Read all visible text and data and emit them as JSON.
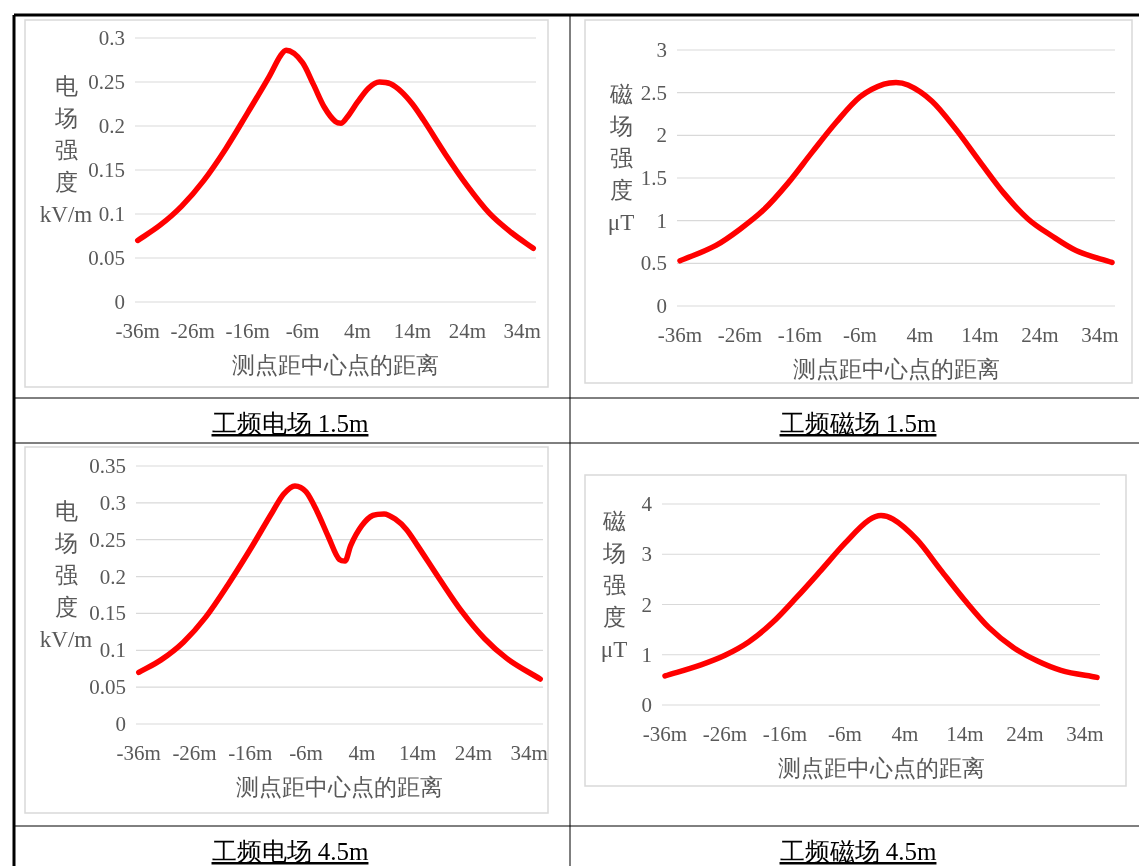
{
  "chart_data": [
    {
      "type": "line",
      "title": "工频电场 1.5m",
      "xlabel": "测点距中心点的距离",
      "ylabel": "电场强度kV/m",
      "grid": "y",
      "marker": "none",
      "line_style": "solid",
      "xlim": [
        -36.5,
        36.5
      ],
      "xticks": [
        {
          "value": -36,
          "label": "-36m"
        },
        {
          "value": -26,
          "label": "-26m"
        },
        {
          "value": -16,
          "label": "-16m"
        },
        {
          "value": -6,
          "label": "-6m"
        },
        {
          "value": 4,
          "label": "4m"
        },
        {
          "value": 14,
          "label": "14m"
        },
        {
          "value": 24,
          "label": "24m"
        },
        {
          "value": 34,
          "label": "34m"
        }
      ],
      "ylim": [
        0,
        0.3
      ],
      "yticks": [
        0,
        0.05,
        0.1,
        0.15,
        0.2,
        0.25,
        0.3
      ],
      "series": [
        {
          "color": "#ff0000",
          "x": [
            -36,
            -32,
            -28,
            -24,
            -20,
            -16,
            -12,
            -10,
            -9,
            -6,
            -4,
            -2,
            0,
            1,
            2,
            4,
            6,
            8,
            10,
            12,
            14,
            16,
            20,
            24,
            28,
            32,
            36
          ],
          "values": [
            0.07,
            0.087,
            0.109,
            0.138,
            0.174,
            0.215,
            0.257,
            0.28,
            0.286,
            0.272,
            0.247,
            0.221,
            0.205,
            0.203,
            0.209,
            0.227,
            0.243,
            0.25,
            0.248,
            0.239,
            0.225,
            0.207,
            0.168,
            0.132,
            0.101,
            0.079,
            0.061
          ]
        }
      ]
    },
    {
      "type": "line",
      "title": "工频磁场 1.5m",
      "xlabel": "测点距中心点的距离",
      "ylabel": "磁场强度μT",
      "grid": "y",
      "marker": "none",
      "line_style": "solid",
      "xlim": [
        -36.5,
        36.5
      ],
      "xticks": [
        {
          "value": -36,
          "label": "-36m"
        },
        {
          "value": -26,
          "label": "-26m"
        },
        {
          "value": -16,
          "label": "-16m"
        },
        {
          "value": -6,
          "label": "-6m"
        },
        {
          "value": 4,
          "label": "4m"
        },
        {
          "value": 14,
          "label": "14m"
        },
        {
          "value": 24,
          "label": "24m"
        },
        {
          "value": 34,
          "label": "34m"
        }
      ],
      "ylim": [
        0,
        3
      ],
      "yticks": [
        0,
        0.5,
        1,
        1.5,
        2,
        2.5,
        3
      ],
      "series": [
        {
          "color": "#ff0000",
          "x": [
            -36,
            -30,
            -26,
            -22,
            -18,
            -14,
            -10,
            -6,
            -2,
            0,
            2,
            6,
            10,
            14,
            18,
            22,
            26,
            30,
            36
          ],
          "values": [
            0.53,
            0.71,
            0.9,
            1.13,
            1.44,
            1.8,
            2.15,
            2.45,
            2.6,
            2.62,
            2.59,
            2.4,
            2.07,
            1.69,
            1.32,
            1.02,
            0.82,
            0.65,
            0.51
          ]
        }
      ]
    },
    {
      "type": "line",
      "title": "工频电场 4.5m",
      "xlabel": "测点距中心点的距离",
      "ylabel": "电场强度kV/m",
      "grid": "y",
      "marker": "none",
      "line_style": "solid",
      "xlim": [
        -36.5,
        36.5
      ],
      "xticks": [
        {
          "value": -36,
          "label": "-36m"
        },
        {
          "value": -26,
          "label": "-26m"
        },
        {
          "value": -16,
          "label": "-16m"
        },
        {
          "value": -6,
          "label": "-6m"
        },
        {
          "value": 4,
          "label": "4m"
        },
        {
          "value": 14,
          "label": "14m"
        },
        {
          "value": 24,
          "label": "24m"
        },
        {
          "value": 34,
          "label": "34m"
        }
      ],
      "ylim": [
        0,
        0.35
      ],
      "yticks": [
        0,
        0.05,
        0.1,
        0.15,
        0.2,
        0.25,
        0.3,
        0.35
      ],
      "series": [
        {
          "color": "#ff0000",
          "x": [
            -36,
            -32,
            -28,
            -24,
            -20,
            -16,
            -12,
            -10,
            -8,
            -6,
            -4,
            -2,
            0,
            1,
            2,
            4,
            6,
            8,
            10,
            12,
            14,
            18,
            22,
            26,
            30,
            36
          ],
          "values": [
            0.07,
            0.087,
            0.111,
            0.145,
            0.189,
            0.237,
            0.288,
            0.312,
            0.323,
            0.315,
            0.288,
            0.254,
            0.223,
            0.221,
            0.242,
            0.269,
            0.283,
            0.285,
            0.278,
            0.264,
            0.242,
            0.196,
            0.152,
            0.116,
            0.089,
            0.061
          ]
        }
      ]
    },
    {
      "type": "line",
      "title": "工频磁场 4.5m",
      "xlabel": "测点距中心点的距离",
      "ylabel": "磁场强度μT",
      "grid": "y",
      "marker": "none",
      "line_style": "solid",
      "xlim": [
        -36.5,
        36.5
      ],
      "xticks": [
        {
          "value": -36,
          "label": "-36m"
        },
        {
          "value": -26,
          "label": "-26m"
        },
        {
          "value": -16,
          "label": "-16m"
        },
        {
          "value": -6,
          "label": "-6m"
        },
        {
          "value": 4,
          "label": "4m"
        },
        {
          "value": 14,
          "label": "14m"
        },
        {
          "value": 24,
          "label": "24m"
        },
        {
          "value": 34,
          "label": "34m"
        }
      ],
      "ylim": [
        0,
        4
      ],
      "yticks": [
        0,
        1,
        2,
        3,
        4
      ],
      "series": [
        {
          "color": "#ff0000",
          "x": [
            -36,
            -30,
            -26,
            -22,
            -18,
            -14,
            -10,
            -6,
            -2,
            0,
            2,
            6,
            10,
            14,
            18,
            22,
            26,
            30,
            36
          ],
          "values": [
            0.58,
            0.8,
            0.99,
            1.26,
            1.65,
            2.15,
            2.68,
            3.22,
            3.68,
            3.77,
            3.7,
            3.29,
            2.68,
            2.08,
            1.54,
            1.15,
            0.88,
            0.69,
            0.55
          ]
        }
      ]
    }
  ]
}
